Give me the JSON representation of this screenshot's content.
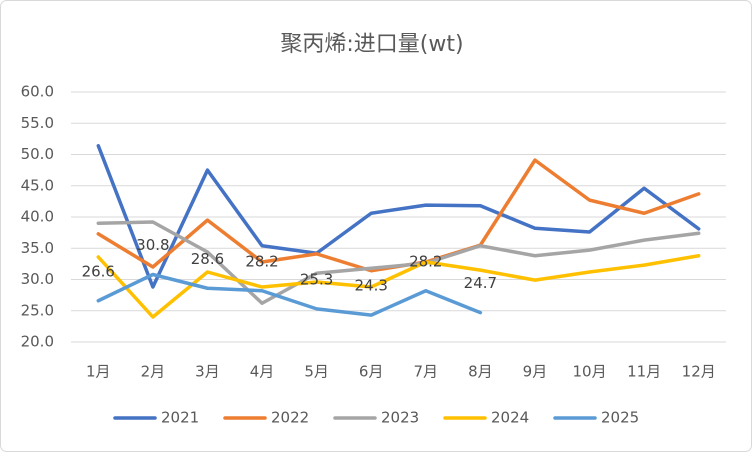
{
  "chart_data": {
    "type": "line",
    "title": "聚丙烯:进口量(wt)",
    "categories": [
      "1月",
      "2月",
      "3月",
      "4月",
      "5月",
      "6月",
      "7月",
      "8月",
      "9月",
      "10月",
      "11月",
      "12月"
    ],
    "series": [
      {
        "name": "2021",
        "color": "#4472c4",
        "values": [
          51.4,
          28.8,
          47.5,
          35.4,
          34.2,
          40.6,
          41.9,
          41.8,
          38.2,
          37.6,
          44.6,
          38.1
        ]
      },
      {
        "name": "2022",
        "color": "#ed7d31",
        "values": [
          37.3,
          32,
          39.5,
          32.8,
          34.1,
          31.4,
          32.8,
          35.5,
          49.1,
          42.7,
          40.6,
          43.7
        ]
      },
      {
        "name": "2023",
        "color": "#a5a5a5",
        "values": [
          39,
          39.2,
          34.4,
          26.2,
          31,
          31.8,
          32.6,
          35.4,
          33.8,
          34.7,
          36.3,
          37.4
        ]
      },
      {
        "name": "2024",
        "color": "#ffc000",
        "values": [
          33.6,
          24,
          31.2,
          28.8,
          29.6,
          28.8,
          32.8,
          31.5,
          29.9,
          31.2,
          32.3,
          33.8
        ]
      },
      {
        "name": "2025",
        "color": "#5b9bd5",
        "values": [
          26.6,
          30.8,
          28.6,
          28.2,
          25.3,
          24.3,
          28.2,
          24.7,
          null,
          null,
          null,
          null
        ],
        "data_labels": true
      }
    ],
    "ylim": [
      20,
      60
    ],
    "yticks": [
      {
        "value": 20,
        "label": "20.0"
      },
      {
        "value": 25,
        "label": "25.0"
      },
      {
        "value": 30,
        "label": "30.0"
      },
      {
        "value": 35,
        "label": "35.0"
      },
      {
        "value": 40,
        "label": "40.0"
      },
      {
        "value": 45,
        "label": "45.0"
      },
      {
        "value": 50,
        "label": "50.0"
      },
      {
        "value": 55,
        "label": "55.0"
      },
      {
        "value": 60,
        "label": "60.0"
      }
    ],
    "grid": true,
    "legend": "bottom"
  }
}
